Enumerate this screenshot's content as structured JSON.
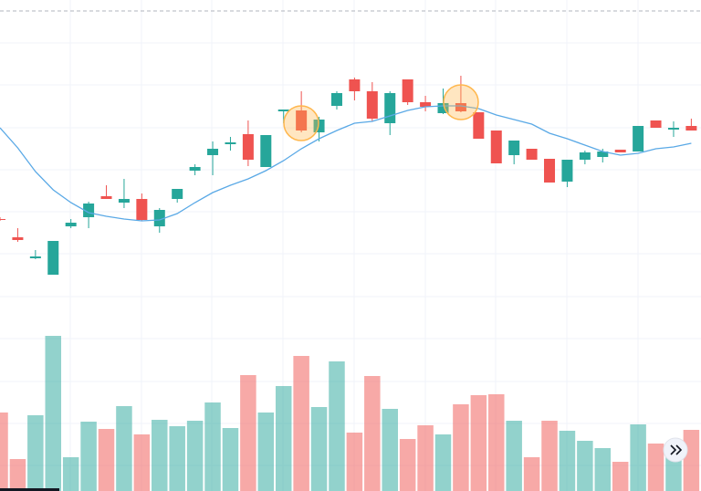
{
  "chart_data": {
    "type": "candlestick",
    "up_color": "#26a69a",
    "down_color": "#ef5350",
    "ma_color": "#5aa9e6",
    "ylim": [
      208,
      538
    ],
    "volume_ylim": [
      0,
      180
    ],
    "open": [
      298,
      278,
      255,
      237,
      290,
      300,
      323,
      316,
      320,
      290,
      320,
      351,
      368,
      380,
      391,
      355,
      416,
      417,
      393,
      422,
      451,
      438,
      403,
      451,
      426,
      414,
      425,
      415,
      395,
      368,
      375,
      364,
      339,
      363,
      366,
      374,
      372,
      406,
      396,
      400
    ],
    "high": [
      300,
      288,
      264,
      274,
      298,
      317,
      335,
      342,
      326,
      310,
      331,
      358,
      383,
      388,
      406,
      390,
      418,
      438,
      410,
      438,
      453,
      448,
      438,
      451,
      433,
      441,
      455,
      415,
      395,
      384,
      375,
      364,
      363,
      373,
      375,
      374,
      400,
      406,
      405,
      408
    ],
    "low": [
      296,
      273,
      254,
      237,
      288,
      288,
      320,
      310,
      296,
      283,
      316,
      346,
      346,
      373,
      356,
      355,
      403,
      393,
      383,
      418,
      428,
      405,
      390,
      423,
      416,
      413,
      415,
      386,
      359,
      358,
      363,
      338,
      333,
      358,
      360,
      371,
      372,
      398,
      388,
      395
    ],
    "close": [
      297,
      275,
      257,
      274,
      294,
      315,
      320,
      320,
      297,
      308,
      331,
      355,
      375,
      382,
      363,
      390,
      418,
      395,
      407,
      436,
      438,
      408,
      436,
      426,
      421,
      425,
      416,
      386,
      359,
      384,
      363,
      338,
      363,
      371,
      372,
      371,
      400,
      398,
      398,
      395
    ],
    "volume": [
      86,
      35,
      83,
      170,
      37,
      76,
      68,
      93,
      62,
      78,
      71,
      77,
      97,
      69,
      127,
      86,
      115,
      148,
      92,
      142,
      64,
      126,
      90,
      57,
      72,
      62,
      95,
      105,
      106,
      77,
      37,
      77,
      66,
      55,
      47,
      32,
      73,
      52,
      45,
      67
    ],
    "ma": [
      398,
      376,
      350,
      330,
      316,
      305,
      301,
      298,
      296,
      297,
      304,
      316,
      327,
      335,
      342,
      351,
      362,
      375,
      386,
      395,
      403,
      405,
      411,
      417,
      421,
      422,
      422,
      419,
      412,
      407,
      402,
      392,
      386,
      379,
      372,
      368,
      370,
      375,
      377,
      381
    ]
  }
}
